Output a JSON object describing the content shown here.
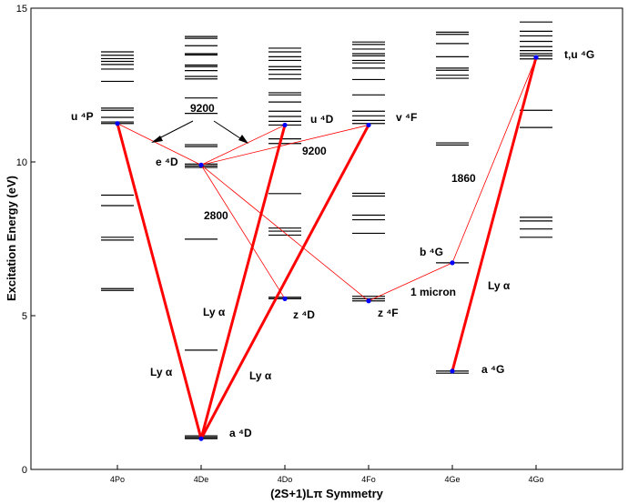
{
  "chart_data": {
    "type": "grotrian-diagram",
    "xlabel": "(2S+1)Lπ Symmetry",
    "ylabel": "Excitation Energy (eV)",
    "ylim": [
      0,
      15
    ],
    "yticks": [
      0,
      5,
      10,
      15
    ],
    "categories": [
      "4Po",
      "4De",
      "4Do",
      "4Fo",
      "4Ge",
      "4Go"
    ],
    "levels": {
      "4Po": [
        5.82,
        5.88,
        7.46,
        7.55,
        8.58,
        8.92,
        11.25,
        11.3,
        11.45,
        11.68,
        11.75,
        12.62,
        13.02,
        13.17,
        13.27,
        13.36,
        13.47,
        13.58
      ],
      "4De": [
        1.0,
        1.04,
        1.09,
        3.88,
        7.49,
        9.82,
        9.87,
        9.93,
        10.5,
        10.56,
        11.58,
        12.08,
        12.7,
        12.78,
        12.97,
        13.1,
        13.15,
        13.48,
        13.52,
        13.78,
        14.02,
        14.08
      ],
      "4Do": [
        5.55,
        5.6,
        7.62,
        7.75,
        7.85,
        8.97,
        10.6,
        10.75,
        11.2,
        11.32,
        11.48,
        11.65,
        11.95,
        12.18,
        12.25,
        12.7,
        12.85,
        13.0,
        13.1,
        13.3,
        13.42,
        13.58,
        13.7
      ],
      "4Fo": [
        5.48,
        5.55,
        5.63,
        7.68,
        8.12,
        8.27,
        8.89,
        8.98,
        11.25,
        11.35,
        11.5,
        11.65,
        12.18,
        12.68,
        13.05,
        13.22,
        13.3,
        13.45,
        13.52,
        13.67,
        13.82,
        13.9
      ],
      "4Ge": [
        3.13,
        3.2,
        6.72,
        10.55,
        10.62,
        12.72,
        12.82,
        12.98,
        13.05,
        13.42,
        13.85,
        14.15,
        14.22
      ],
      "4Go": [
        7.55,
        7.82,
        8.08,
        8.2,
        11.12,
        11.68,
        13.35,
        13.45,
        13.52,
        13.62,
        13.75,
        13.92,
        14.1,
        14.25,
        14.55
      ]
    },
    "term_labels": [
      {
        "text": "u ⁴P",
        "term": "4Po",
        "energy": 11.25
      },
      {
        "text": "e ⁴D",
        "term": "4De",
        "energy": 9.9
      },
      {
        "text": "u ⁴D",
        "term": "4Do",
        "energy": 11.2
      },
      {
        "text": "v ⁴F",
        "term": "4Fo",
        "energy": 11.2
      },
      {
        "text": "t,u ⁴G",
        "term": "4Go",
        "energy": 13.4
      },
      {
        "text": "z ⁴D",
        "term": "4Do",
        "energy": 5.55
      },
      {
        "text": "z ⁴F",
        "term": "4Fo",
        "energy": 5.48
      },
      {
        "text": "b ⁴G",
        "term": "4Ge",
        "energy": 6.72
      },
      {
        "text": "a ⁴D",
        "term": "4De",
        "energy": 1.0
      },
      {
        "text": "a ⁴G",
        "term": "4Ge",
        "energy": 3.2
      }
    ],
    "strong_transitions": [
      {
        "label": "Ly α",
        "from": [
          "4De",
          1.0
        ],
        "to": [
          "4Po",
          11.25
        ]
      },
      {
        "label": "Ly α",
        "from": [
          "4De",
          1.0
        ],
        "to": [
          "4Do",
          11.2
        ]
      },
      {
        "label": "Ly α",
        "from": [
          "4De",
          1.0
        ],
        "to": [
          "4Fo",
          11.2
        ]
      },
      {
        "label": "Ly α",
        "from": [
          "4Ge",
          3.2
        ],
        "to": [
          "4Go",
          13.4
        ]
      }
    ],
    "weak_transitions": [
      {
        "from": [
          "4Po",
          11.25
        ],
        "to": [
          "4De",
          9.9
        ]
      },
      {
        "from": [
          "4De",
          9.9
        ],
        "to": [
          "4Do",
          11.2
        ]
      },
      {
        "from": [
          "4De",
          9.9
        ],
        "to": [
          "4Fo",
          11.2
        ]
      },
      {
        "from": [
          "4De",
          9.9
        ],
        "to": [
          "4Do",
          5.55
        ]
      },
      {
        "from": [
          "4De",
          9.9
        ],
        "to": [
          "4Fo",
          5.48
        ]
      },
      {
        "from": [
          "4Fo",
          5.48
        ],
        "to": [
          "4Ge",
          6.72
        ]
      },
      {
        "from": [
          "4Ge",
          6.72
        ],
        "to": [
          "4Go",
          13.4
        ]
      }
    ],
    "wavelength_labels": [
      "9200",
      "9200",
      "2800",
      "1860",
      "1 micron"
    ],
    "colors": {
      "levels": "#000000",
      "strong_line": "#ff0000",
      "weak_line": "#ff0000",
      "point": "#0000ff",
      "frame": "#000000"
    }
  }
}
